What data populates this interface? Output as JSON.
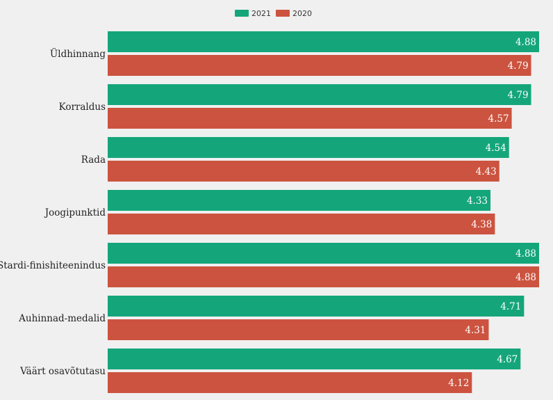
{
  "chart_data": {
    "type": "bar",
    "orientation": "horizontal",
    "categories": [
      "Üldhinnang",
      "Korraldus",
      "Rada",
      "Joogipunktid",
      "Stardi-finishiteenindus",
      "Auhinnad-medalid",
      "Väärt osavõtutasu"
    ],
    "series": [
      {
        "name": "2021",
        "color": "#14a67a",
        "values": [
          4.88,
          4.79,
          4.54,
          4.33,
          4.88,
          4.71,
          4.67
        ],
        "labels": [
          "4.88",
          "4.79",
          "4.54",
          "4.33",
          "4.88",
          "4.71",
          "4.67"
        ]
      },
      {
        "name": "2020",
        "color": "#cc533f",
        "values": [
          4.79,
          4.57,
          4.43,
          4.38,
          4.88,
          4.31,
          4.12
        ],
        "labels": [
          "4.79",
          "4.57",
          "4.43",
          "4.38",
          "4.88",
          "4.31",
          "4.12"
        ]
      }
    ],
    "xlim": [
      0,
      4.88
    ],
    "legend_position": "top-center",
    "grid": false
  }
}
